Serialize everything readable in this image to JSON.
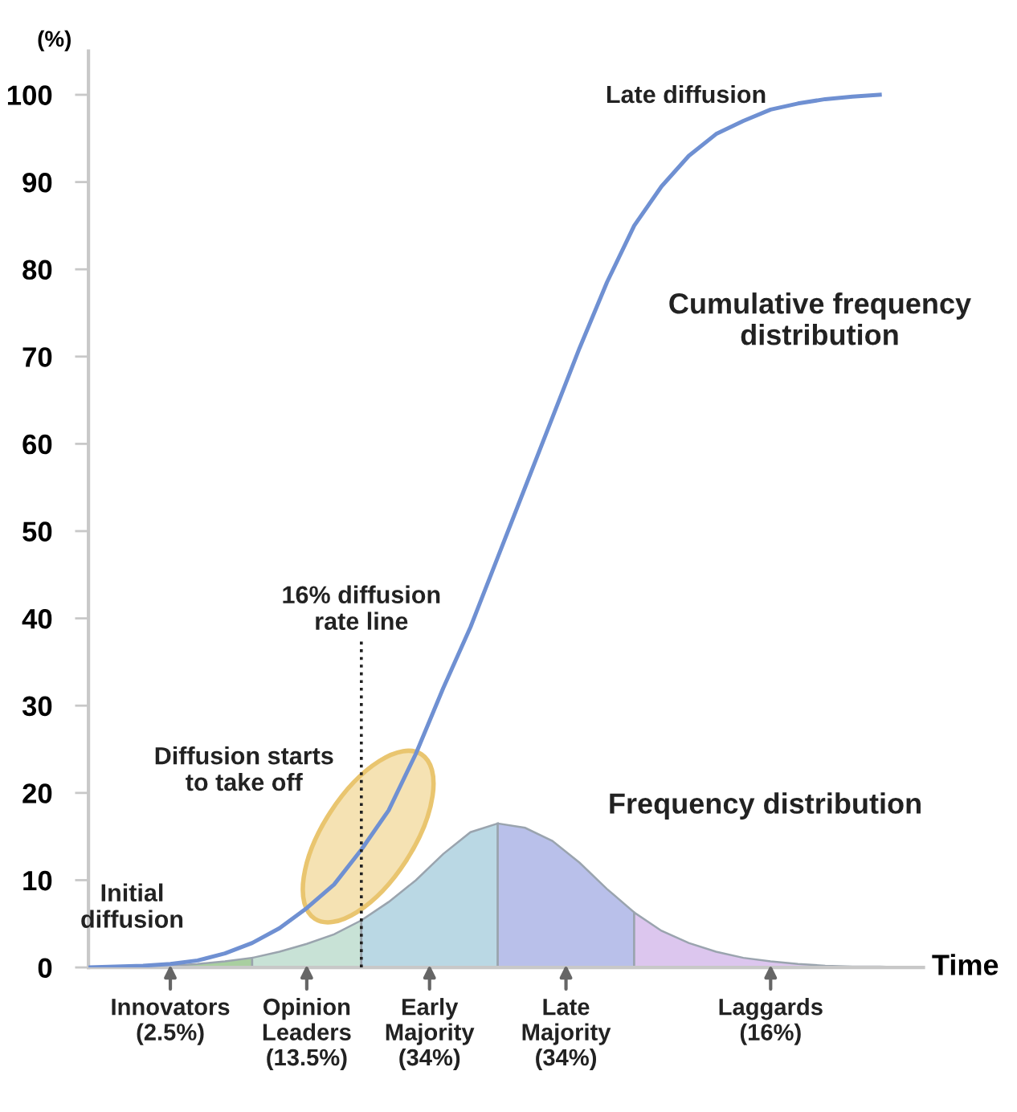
{
  "chart_data": {
    "type": "area",
    "ylabel": "(%)",
    "xlabel": "Time",
    "categories": [
      null,
      null,
      null,
      null,
      null,
      null,
      null,
      null,
      null,
      null,
      null,
      null,
      null,
      null,
      null,
      null,
      null,
      null,
      null,
      null,
      null,
      null,
      null,
      null,
      null,
      null,
      null,
      null,
      null,
      null,
      null
    ],
    "ylim": [
      0,
      105
    ],
    "yticks": [
      0,
      10,
      20,
      30,
      40,
      50,
      60,
      70,
      80,
      90,
      100
    ],
    "grid": false,
    "legend": false,
    "series": [
      {
        "type": "line",
        "color": "#6f90d2",
        "values": [
          0,
          0.1,
          0.2,
          0.4,
          0.8,
          1.6,
          2.8,
          4.5,
          6.8,
          9.5,
          13.5,
          18,
          24.5,
          32,
          39,
          47,
          55,
          63,
          71,
          78.5,
          85,
          89.5,
          93,
          95.5,
          97,
          98.3,
          99,
          99.5,
          99.8,
          100,
          null
        ]
      },
      {
        "name": "Innovators\n(2.5%)",
        "color": "#a9cfa0",
        "values": [
          0,
          0,
          0.1,
          0.2,
          0.4,
          0.7,
          1.1,
          null,
          null,
          null,
          null,
          null,
          null,
          null,
          null,
          null,
          null,
          null,
          null,
          null,
          null,
          null,
          null,
          null,
          null,
          null,
          null,
          null,
          null,
          null,
          null
        ]
      },
      {
        "name": "Opinion\nLeaders\n(13.5%)",
        "color": "#c8e2d6",
        "values": [
          null,
          null,
          null,
          null,
          null,
          null,
          1.1,
          1.8,
          2.7,
          3.8,
          5.4,
          null,
          null,
          null,
          null,
          null,
          null,
          null,
          null,
          null,
          null,
          null,
          null,
          null,
          null,
          null,
          null,
          null,
          null,
          null,
          null
        ]
      },
      {
        "name": "Early\nMajority\n(34%)",
        "color": "#bad8e4",
        "values": [
          null,
          null,
          null,
          null,
          null,
          null,
          null,
          null,
          null,
          null,
          5.4,
          7.5,
          10,
          13,
          15.5,
          16.5,
          null,
          null,
          null,
          null,
          null,
          null,
          null,
          null,
          null,
          null,
          null,
          null,
          null,
          null,
          null
        ]
      },
      {
        "name": "Late\nMajority\n(34%)",
        "color": "#b9c0ea",
        "values": [
          null,
          null,
          null,
          null,
          null,
          null,
          null,
          null,
          null,
          null,
          null,
          null,
          null,
          null,
          null,
          16.5,
          16,
          14.5,
          12,
          9,
          6.3,
          null,
          null,
          null,
          null,
          null,
          null,
          null,
          null,
          null,
          null
        ]
      },
      {
        "name": "Laggards\n(16%)",
        "color": "#dcc6ee",
        "values": [
          null,
          null,
          null,
          null,
          null,
          null,
          null,
          null,
          null,
          null,
          null,
          null,
          null,
          null,
          null,
          null,
          null,
          null,
          null,
          null,
          6.3,
          4.2,
          2.8,
          1.8,
          1.1,
          0.7,
          0.4,
          0.2,
          0.1,
          0.1,
          0
        ]
      }
    ],
    "annotations": [
      "16% diffusion\nrate line",
      "Initial\ndiffusion",
      "Diffusion starts\nto take off",
      "Late diffusion",
      "Cumulative frequency\ndistribution",
      "Frequency distribution"
    ]
  }
}
